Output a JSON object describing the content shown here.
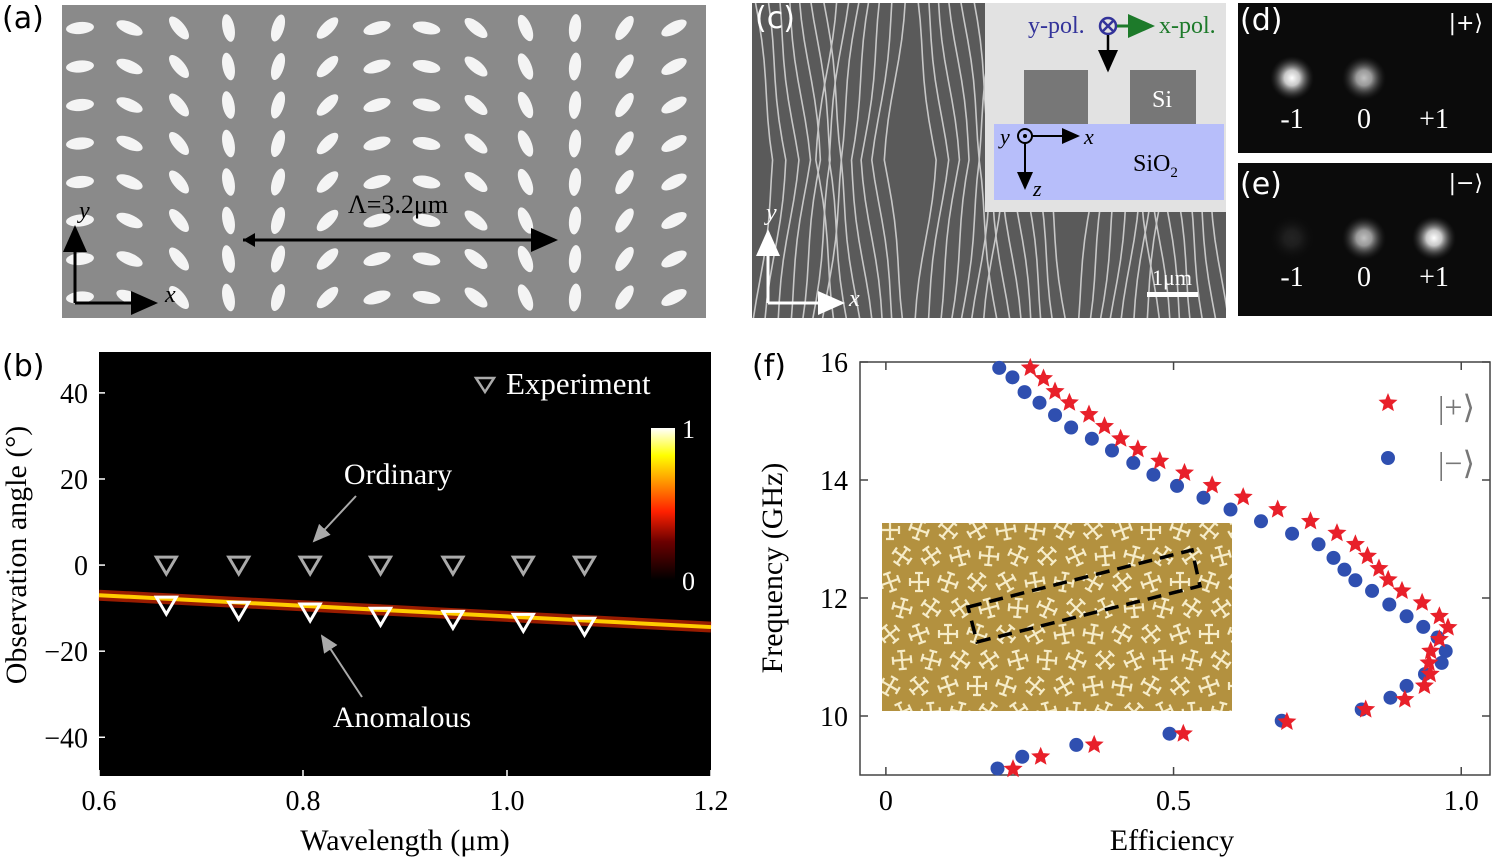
{
  "panels": {
    "a": {
      "label": "(a)",
      "period_label": "Λ=3.2μm",
      "axis_x": "x",
      "axis_y": "y"
    },
    "c": {
      "label": "(c)",
      "inset": {
        "y_pol": "y-pol.",
        "x_pol": "x-pol.",
        "si": "Si",
        "sio2": "SiO",
        "sio2_sub": "2",
        "axis_y": "y",
        "axis_x": "x",
        "axis_z": "z"
      },
      "axis_x": "x",
      "axis_y": "y",
      "scale_bar": "1μm"
    },
    "d": {
      "label": "(d)",
      "state": "|+⟩",
      "orders": [
        "-1",
        "0",
        "+1"
      ],
      "spot_intensity": [
        0.95,
        0.7,
        0.0
      ]
    },
    "e": {
      "label": "(e)",
      "state": "|−⟩",
      "orders": [
        "-1",
        "0",
        "+1"
      ],
      "spot_intensity": [
        0.05,
        0.7,
        0.95
      ]
    },
    "b": {
      "label": "(b)"
    },
    "f": {
      "label": "(f)"
    }
  },
  "colors": {
    "star": "#e8202a",
    "dot": "#2f4fb0",
    "inset_gold": "#b3913f",
    "substrate": "#b7befa"
  },
  "chart_data": [
    {
      "id": "b",
      "type": "heatmap",
      "xlabel": "Wavelength (μm)",
      "ylabel": "Observation angle (°)",
      "xlim": [
        0.6,
        1.2
      ],
      "ylim": [
        -49,
        49.5
      ],
      "xticks": [
        "0.6",
        "0.8",
        "1.0",
        "1.2"
      ],
      "xtick_values": [
        0.6,
        0.8,
        1.0,
        1.2
      ],
      "yticks": [
        "40",
        "20",
        "0",
        "−20",
        "−40"
      ],
      "ytick_values": [
        40,
        20,
        0,
        -20,
        -40
      ],
      "legend": "Experiment",
      "legend_position": "top-right",
      "colorbar": {
        "min_label": "0",
        "max_label": "1"
      },
      "annotations": [
        "Ordinary",
        "Anomalous"
      ],
      "anomalous_line": {
        "x": [
          0.6,
          1.2
        ],
        "y": [
          -7.0,
          -14.4
        ]
      },
      "series": [
        {
          "name": "Ordinary",
          "x": [
            0.666,
            0.737,
            0.807,
            0.876,
            0.947,
            1.016,
            1.076
          ],
          "y": [
            0,
            0,
            0,
            0,
            0,
            0,
            0
          ]
        },
        {
          "name": "Anomalous",
          "x": [
            0.666,
            0.737,
            0.807,
            0.876,
            0.947,
            1.016,
            1.076
          ],
          "y": [
            -9.3,
            -10.5,
            -10.9,
            -11.9,
            -12.6,
            -13.3,
            -14.2
          ]
        }
      ]
    },
    {
      "id": "f",
      "type": "scatter",
      "xlabel": "Efficiency",
      "ylabel": "Frequency (GHz)",
      "xlim": [
        -0.045,
        1.05
      ],
      "ylim": [
        9,
        16
      ],
      "xticks": [
        "0",
        "0.5",
        "1.0"
      ],
      "xtick_values": [
        0,
        0.5,
        1.0
      ],
      "yticks": [
        "16",
        "14",
        "12",
        "10"
      ],
      "ytick_values": [
        16,
        14,
        12,
        10
      ],
      "legend_position": "top-right",
      "series": [
        {
          "name": "|+⟩",
          "marker": "star",
          "x": [
            0.251,
            0.274,
            0.294,
            0.319,
            0.353,
            0.38,
            0.408,
            0.438,
            0.476,
            0.519,
            0.567,
            0.621,
            0.681,
            0.738,
            0.784,
            0.816,
            0.837,
            0.857,
            0.873,
            0.897,
            0.932,
            0.962,
            0.977,
            0.962,
            0.947,
            0.944,
            0.946,
            0.936,
            0.902,
            0.834,
            0.697,
            0.517,
            0.362,
            0.269,
            0.221
          ],
          "y": [
            15.9,
            15.72,
            15.5,
            15.31,
            15.11,
            14.91,
            14.7,
            14.52,
            14.32,
            14.12,
            13.91,
            13.71,
            13.5,
            13.3,
            13.1,
            12.91,
            12.71,
            12.5,
            12.31,
            12.12,
            11.92,
            11.69,
            11.5,
            11.3,
            11.1,
            10.9,
            10.71,
            10.51,
            10.28,
            10.11,
            9.9,
            9.7,
            9.51,
            9.31,
            9.1
          ]
        },
        {
          "name": "|−⟩",
          "marker": "circle",
          "x": [
            0.197,
            0.22,
            0.241,
            0.267,
            0.294,
            0.322,
            0.358,
            0.393,
            0.43,
            0.465,
            0.506,
            0.552,
            0.599,
            0.652,
            0.706,
            0.752,
            0.778,
            0.797,
            0.816,
            0.845,
            0.875,
            0.905,
            0.934,
            0.959,
            0.973,
            0.966,
            0.937,
            0.905,
            0.877,
            0.827,
            0.688,
            0.493,
            0.331,
            0.237,
            0.194
          ],
          "y": [
            15.9,
            15.74,
            15.49,
            15.31,
            15.1,
            14.89,
            14.7,
            14.5,
            14.29,
            14.09,
            13.9,
            13.7,
            13.5,
            13.3,
            13.09,
            12.91,
            12.68,
            12.48,
            12.3,
            12.12,
            11.89,
            11.69,
            11.51,
            11.33,
            11.1,
            10.9,
            10.71,
            10.51,
            10.31,
            10.11,
            9.92,
            9.7,
            9.51,
            9.31,
            9.11
          ]
        }
      ]
    }
  ]
}
